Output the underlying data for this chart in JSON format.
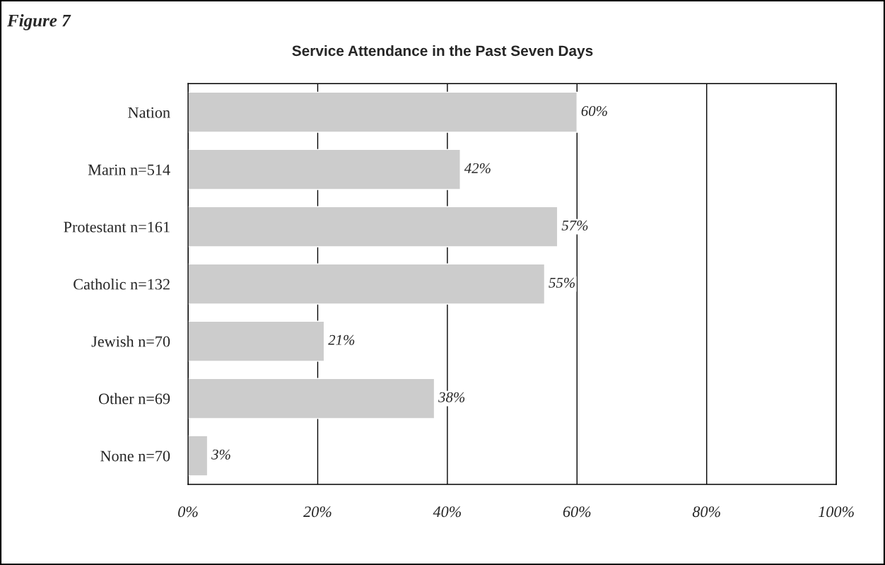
{
  "chart_data": {
    "type": "bar",
    "orientation": "horizontal",
    "title": "Service Attendance in the Past Seven Days",
    "annotations": [
      "Figure 7"
    ],
    "categories": [
      "Nation",
      "Marin n=514",
      "Protestant n=161",
      "Catholic n=132",
      "Jewish n=70",
      "Other n=69",
      "None n=70"
    ],
    "values": [
      60,
      42,
      57,
      55,
      21,
      38,
      3
    ],
    "value_labels": [
      "60%",
      "42%",
      "57%",
      "55%",
      "21%",
      "38%",
      "3%"
    ],
    "color": "#cccccc",
    "xlim": [
      0,
      100
    ],
    "xticks": [
      {
        "value": 0,
        "label": "0%"
      },
      {
        "value": 20,
        "label": "20%"
      },
      {
        "value": 40,
        "label": "40%"
      },
      {
        "value": 60,
        "label": "60%"
      },
      {
        "value": 80,
        "label": "80%"
      },
      {
        "value": 100,
        "label": "100%"
      }
    ],
    "grid": "x"
  }
}
